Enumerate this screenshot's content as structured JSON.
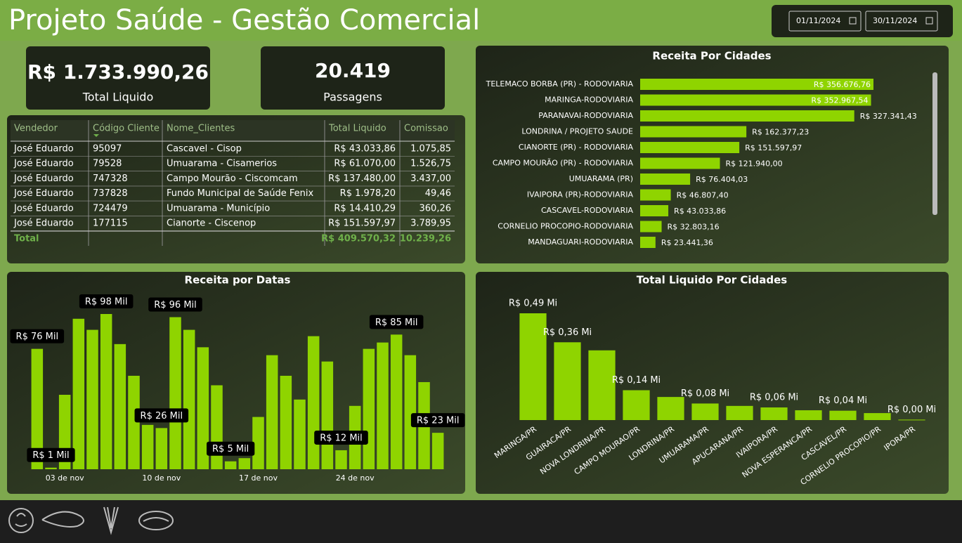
{
  "header": {
    "title": "Projeto Saúde - Gestão Comercial",
    "date_start": "01/11/2024",
    "date_end": "30/11/2024"
  },
  "kpis": [
    {
      "value": "R$ 1.733.990,26",
      "label": "Total Liquido"
    },
    {
      "value": "20.419",
      "label": "Passagens"
    }
  ],
  "table": {
    "columns": [
      "Vendedor",
      "Código Cliente",
      "Nome_Clientes",
      "Total Liquido",
      "Comissao"
    ],
    "rows": [
      [
        "José Eduardo",
        "95097",
        "Cascavel - Cisop",
        "R$ 43.033,86",
        "1.075,85"
      ],
      [
        "José Eduardo",
        "79528",
        "Umuarama - Cisamerios",
        "R$ 61.070,00",
        "1.526,75"
      ],
      [
        "José Eduardo",
        "747328",
        "Campo Mourão - Ciscomcam",
        "R$ 137.480,00",
        "3.437,00"
      ],
      [
        "José Eduardo",
        "737828",
        "Fundo Municipal de Saúde Fenix",
        "R$ 1.978,20",
        "49,46"
      ],
      [
        "José Eduardo",
        "724479",
        "Umuarama - Município",
        "R$ 14.410,29",
        "360,26"
      ],
      [
        "José Eduardo",
        "177115",
        "Cianorte - Ciscenop",
        "R$ 151.597,97",
        "3.789,95"
      ]
    ],
    "total": {
      "label": "Total",
      "total_liquido": "R$ 409.570,32",
      "comissao": "10.239,26"
    }
  },
  "chart_data": [
    {
      "type": "hbar",
      "title": "Receita Por Cidades",
      "color": "#8fd400",
      "categories": [
        "TELEMACO BORBA (PR) - RODOVIARIA",
        "MARINGA-RODOVIARIA",
        "PARANAVAI-RODOVIARIA",
        "LONDRINA / PROJETO SAUDE",
        "CIANORTE (PR) - RODOVIARIA",
        "CAMPO MOURÃO (PR) - RODOVIARIA",
        "UMUARAMA (PR)",
        "IVAIPORA (PR)-RODOVIARIA",
        "CASCAVEL-RODOVIARIA",
        "CORNELIO PROCOPIO-RODOVIARIA",
        "MANDAGUARI-RODOVIARIA"
      ],
      "values": [
        356676.76,
        352967.54,
        327341.43,
        162377.23,
        151597.97,
        121940.0,
        76404.03,
        46807.4,
        43033.86,
        32803.16,
        23441.36
      ],
      "value_labels": [
        "R$ 356.676,76",
        "R$ 352.967,54",
        "R$ 327.341,43",
        "R$ 162.377,23",
        "R$ 151.597,97",
        "R$ 121.940,00",
        "R$ 76.404,03",
        "R$ 46.807,40",
        "R$ 43.033,86",
        "R$ 32.803,16",
        "R$ 23.441,36"
      ]
    },
    {
      "type": "bar",
      "title": "Receita por Datas",
      "color": "#8fd400",
      "categories": [
        null,
        null,
        "03 de nov",
        null,
        null,
        null,
        null,
        null,
        null,
        "10 de nov",
        null,
        null,
        null,
        null,
        null,
        null,
        "17 de nov",
        null,
        null,
        null,
        null,
        null,
        null,
        "24 de nov",
        null,
        null,
        null,
        null,
        null,
        null
      ],
      "values": [
        76,
        1,
        47,
        95,
        88,
        98,
        79,
        59,
        28,
        26,
        96,
        88,
        77,
        53,
        5,
        7,
        33,
        72,
        59,
        44,
        84,
        68,
        12,
        40,
        76,
        80,
        85,
        72,
        55,
        23
      ],
      "value_labels": [
        "R$ 76 Mil",
        "R$ 1 Mil",
        null,
        null,
        null,
        "R$ 98 Mil",
        null,
        null,
        null,
        "R$ 26 Mil",
        "R$ 96 Mil",
        null,
        null,
        null,
        "R$ 5 Mil",
        null,
        null,
        null,
        null,
        null,
        null,
        null,
        "R$ 12 Mil",
        null,
        null,
        null,
        "R$ 85 Mil",
        null,
        null,
        "R$ 23 Mil"
      ]
    },
    {
      "type": "column",
      "title": "Total Liquido Por Cidades",
      "color": "#8fd400",
      "categories": [
        "MARINGA/PR",
        "GUAIRACA/PR",
        "NOVA LONDRINA/PR",
        "CAMPO MOURAO/PR",
        "LONDRINA/PR",
        "UMUARAMA/PR",
        "APUCARANA/PR",
        "IVAIPORA/PR",
        "NOVA ESPERANCA/PR",
        "CASCAVEL/PR",
        "CORNELIO PROCOPIO/PR",
        "IPORA/PR"
      ],
      "values": [
        0.49,
        0.357,
        0.32,
        0.137,
        0.106,
        0.076,
        0.065,
        0.058,
        0.045,
        0.043,
        0.032,
        0.002
      ],
      "value_labels": [
        "R$ 0,49 Mi",
        "R$ 0,36 Mi",
        null,
        "R$ 0,14 Mi",
        null,
        "R$ 0,08 Mi",
        null,
        "R$ 0,06 Mi",
        null,
        "R$ 0,04 Mi",
        null,
        "R$ 0,00 Mi"
      ]
    }
  ]
}
